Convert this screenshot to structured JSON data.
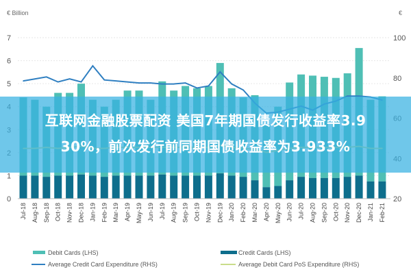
{
  "chart_data": {
    "type": "bar",
    "title": "",
    "left_axis": {
      "unit_label": "€ Billion",
      "ylim": [
        0,
        7
      ],
      "ticks": [
        0,
        1,
        2,
        3,
        4,
        5,
        6,
        7
      ]
    },
    "right_axis": {
      "unit_label": "€",
      "ylim": [
        20,
        100
      ],
      "ticks": [
        20,
        40,
        60,
        80,
        100
      ]
    },
    "categories": [
      "Jul-18",
      "Aug-18",
      "Sep-18",
      "Oct-18",
      "Nov-18",
      "Dec-18",
      "Jan-19",
      "Feb-19",
      "Mar-19",
      "Apr-19",
      "May-19",
      "Jun-19",
      "Jul-19",
      "Aug-19",
      "Sep-19",
      "Oct-19",
      "Nov-19",
      "Dec-19",
      "Jan-20",
      "Feb-20",
      "Mar-20",
      "Apr-20",
      "May-20",
      "Jun-20",
      "Jul-20",
      "Aug-20",
      "Sep-20",
      "Oct-20",
      "Nov-20",
      "Dec-20",
      "Jan-21",
      "Feb-21"
    ],
    "series": [
      {
        "name": "Credit Cards (LHS)",
        "type": "bar",
        "axis": "left",
        "color": "#0e6e8c",
        "values": [
          1.0,
          1.0,
          0.95,
          1.0,
          1.0,
          1.05,
          1.0,
          0.95,
          1.0,
          1.0,
          1.0,
          1.0,
          1.05,
          1.0,
          1.0,
          1.0,
          1.0,
          1.1,
          1.0,
          0.95,
          0.8,
          0.5,
          0.55,
          0.8,
          0.95,
          0.9,
          0.9,
          0.9,
          0.95,
          1.0,
          0.75,
          0.75
        ]
      },
      {
        "name": "Debit Cards (LHS)",
        "type": "bar",
        "axis": "left",
        "color": "#4fbfb5",
        "values": [
          3.4,
          3.3,
          3.05,
          3.6,
          3.6,
          3.95,
          3.3,
          3.05,
          3.3,
          3.7,
          3.7,
          3.3,
          4.05,
          3.7,
          3.9,
          3.8,
          3.9,
          4.8,
          3.8,
          3.45,
          3.7,
          2.7,
          3.45,
          4.25,
          4.45,
          4.45,
          4.4,
          4.35,
          4.5,
          5.55,
          3.55,
          3.7
        ]
      },
      {
        "name": "Average Credit Card Expenditure (RHS)",
        "type": "line",
        "axis": "right",
        "color": "#2f7fc1",
        "values": [
          78.5,
          79.5,
          80.5,
          78,
          79.5,
          78,
          86,
          79,
          78.5,
          78,
          77.5,
          77.5,
          77,
          77,
          77.5,
          75,
          76,
          83,
          77,
          74,
          67.5,
          62.5,
          63,
          64.5,
          66,
          64,
          67,
          68.5,
          71,
          71,
          70.5,
          69
        ]
      },
      {
        "name": "Average Debit Card PoS Expenditure (RHS)",
        "type": "line",
        "axis": "right",
        "color": "#c9dd8a",
        "values": [
          45,
          45,
          45.5,
          45,
          45.5,
          46,
          45,
          45,
          45.5,
          45.5,
          45.5,
          45.5,
          45.5,
          45.5,
          45.5,
          45.5,
          45.5,
          46.5,
          45.5,
          45,
          44.5,
          43,
          44,
          45,
          45.5,
          45.5,
          45.5,
          45.5,
          45.5,
          46,
          45,
          45
        ]
      }
    ],
    "legend": {
      "placement": "bottom",
      "entries": [
        "Debit Cards (LHS)",
        "Credit Cards (LHS)",
        "Average Credit Card Expenditure (RHS)",
        "Average Debit Card PoS Expenditure (RHS)"
      ]
    },
    "grid": true
  },
  "banner": {
    "line1": "互联网金融股票配资 美国7年期国债发行收益率3.9",
    "line2": "30%，前次发行前同期国债收益率为3.933%"
  }
}
